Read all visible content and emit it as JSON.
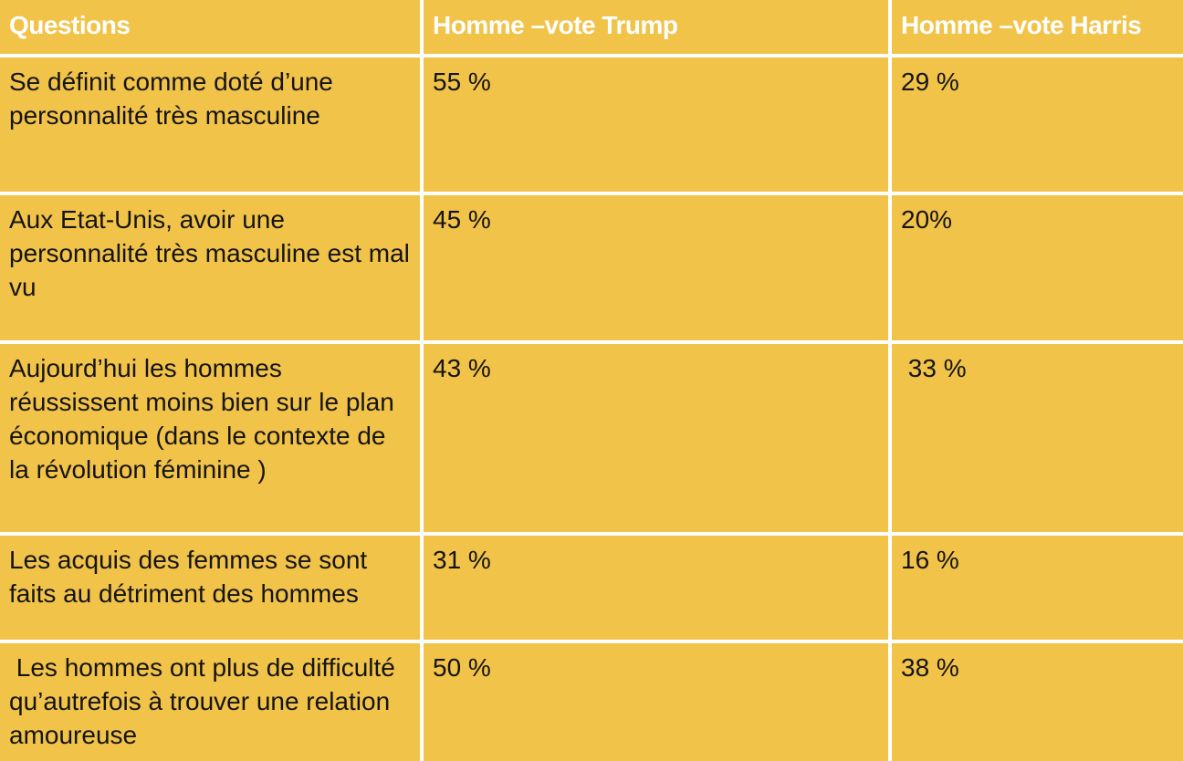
{
  "colors": {
    "cell_background": "#F2C349",
    "gridline": "#FFFFFF",
    "header_text": "#FFFFFF",
    "body_text": "#141414"
  },
  "table": {
    "columns": [
      "Questions",
      "Homme –vote Trump",
      "Homme –vote Harris"
    ],
    "rows": [
      {
        "question": "Se définit comme doté d’une personnalité très masculine",
        "trump": "55 %",
        "harris": "29 %"
      },
      {
        "question": "Aux Etat-Unis, avoir une personnalité très masculine est mal vu",
        "trump": "45 %",
        "harris": "20%"
      },
      {
        "question": "Aujourd’hui les hommes réussissent moins bien sur le plan économique (dans le contexte de la révolution féminine )",
        "trump": "43 %",
        "harris": " 33 %"
      },
      {
        "question": "Les acquis des femmes se sont faits au détriment des hommes",
        "trump": "31 %",
        "harris": "16 %"
      },
      {
        "question": " Les hommes ont plus de difficulté qu’autrefois à trouver une relation amoureuse",
        "trump": "50 %",
        "harris": "38 %"
      }
    ]
  },
  "chart_data": {
    "type": "table",
    "title": "",
    "columns": [
      "Questions",
      "Homme –vote Trump",
      "Homme –vote Harris"
    ],
    "rows": [
      [
        "Se définit comme doté d’une personnalité très masculine",
        "55 %",
        "29 %"
      ],
      [
        "Aux Etat-Unis, avoir une personnalité très masculine est mal vu",
        "45 %",
        "20%"
      ],
      [
        "Aujourd’hui les hommes réussissent moins bien sur le plan économique (dans le contexte de la révolution féminine )",
        "43 %",
        " 33 %"
      ],
      [
        "Les acquis des femmes se sont faits au détriment des hommes",
        "31 %",
        "16 %"
      ],
      [
        " Les hommes ont plus de difficulté qu’autrefois à trouver une relation amoureuse",
        "50 %",
        "38 %"
      ]
    ],
    "series_numeric": [
      {
        "name": "Homme –vote Trump",
        "values": [
          55,
          45,
          43,
          31,
          50
        ]
      },
      {
        "name": "Homme –vote Harris",
        "values": [
          29,
          20,
          33,
          16,
          38
        ]
      }
    ]
  }
}
